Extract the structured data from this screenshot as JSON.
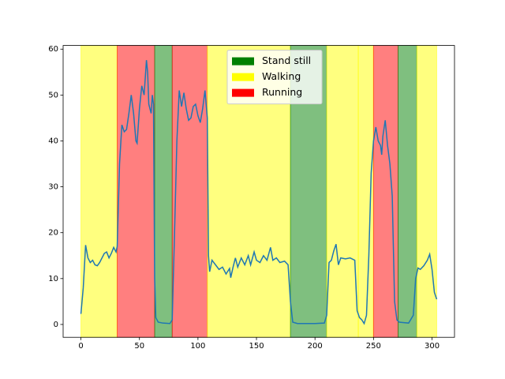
{
  "chart_data": {
    "type": "line",
    "x": [
      0,
      2,
      4,
      6,
      8,
      10,
      12,
      14,
      16,
      18,
      20,
      22,
      24,
      26,
      28,
      30,
      31,
      33,
      35,
      37,
      39,
      41,
      43,
      45,
      47,
      48,
      50,
      52,
      54,
      56,
      57,
      58,
      60,
      61,
      62,
      63,
      64,
      66,
      70,
      76,
      78,
      80,
      82,
      84,
      86,
      88,
      90,
      92,
      94,
      96,
      98,
      100,
      102,
      104,
      106,
      108,
      109,
      110,
      112,
      115,
      118,
      121,
      124,
      127,
      128,
      130,
      132,
      134,
      137,
      140,
      143,
      145,
      148,
      150,
      153,
      156,
      159,
      162,
      164,
      167,
      170,
      174,
      177,
      179,
      181,
      185,
      200,
      208,
      210,
      212,
      214,
      216,
      218,
      220,
      222,
      226,
      230,
      234,
      236,
      238,
      240,
      242,
      244,
      246,
      248,
      250,
      252,
      254,
      256,
      257,
      258,
      260,
      262,
      264,
      266,
      268,
      270,
      272,
      280,
      284,
      286,
      288,
      290,
      293,
      296,
      298,
      300,
      302,
      304
    ],
    "series": [
      {
        "color": "#1f77b4",
        "values": [
          2.3,
          8,
          17.3,
          14.5,
          13.5,
          14,
          13,
          12.8,
          13.5,
          14.5,
          15.5,
          15.8,
          14.5,
          15.5,
          16.8,
          15.8,
          17,
          35,
          43.5,
          42,
          42.5,
          46,
          50,
          46,
          40,
          39.5,
          47,
          52,
          50,
          57.6,
          55,
          48,
          46,
          50,
          48,
          10,
          1.5,
          0.5,
          0.3,
          0.2,
          1,
          20,
          40,
          51,
          47.5,
          50.5,
          47,
          44.5,
          45,
          47.5,
          48,
          45.5,
          44,
          47,
          51,
          45,
          15,
          11.5,
          14,
          13,
          12,
          12.5,
          11,
          12.2,
          10.2,
          12.5,
          14.5,
          12.5,
          14.5,
          13,
          15,
          13,
          15.8,
          14,
          13.5,
          15,
          14,
          16.8,
          14,
          14.5,
          13.5,
          13.8,
          13,
          5,
          0.5,
          0.2,
          0.2,
          0.3,
          2,
          13.5,
          14,
          16,
          17.5,
          13,
          14.5,
          14.3,
          14.5,
          14,
          3,
          1.5,
          1,
          0.2,
          2,
          15,
          33,
          40,
          43,
          40,
          39,
          37,
          41,
          44.5,
          39,
          35,
          28,
          5,
          1,
          0.5,
          0.3,
          2,
          10,
          12.3,
          12,
          12.8,
          14,
          15.3,
          12,
          7,
          5.5
        ]
      }
    ],
    "states": [
      {
        "name": "Stand still",
        "color": "#008000"
      },
      {
        "name": "Walking",
        "color": "#ffff00"
      },
      {
        "name": "Running",
        "color": "#ff0000"
      }
    ],
    "spans": [
      {
        "start": 0,
        "end": 31,
        "state": 1
      },
      {
        "start": 31,
        "end": 63,
        "state": 2
      },
      {
        "start": 63,
        "end": 78,
        "state": 0
      },
      {
        "start": 78,
        "end": 108,
        "state": 2
      },
      {
        "start": 108,
        "end": 179,
        "state": 1
      },
      {
        "start": 179,
        "end": 210,
        "state": 0
      },
      {
        "start": 210,
        "end": 237,
        "state": 1
      },
      {
        "start": 237,
        "end": 250,
        "state": 1
      },
      {
        "start": 250,
        "end": 271,
        "state": 2
      },
      {
        "start": 271,
        "end": 287,
        "state": 0
      },
      {
        "start": 287,
        "end": 304,
        "state": 1
      }
    ],
    "xlim": [
      -15.2,
      319.2
    ],
    "ylim": [
      -2.8,
      60.8
    ],
    "xticks": [
      0,
      50,
      100,
      150,
      200,
      250,
      300
    ],
    "yticks": [
      0,
      10,
      20,
      30,
      40,
      50,
      60
    ],
    "legend": "upper center"
  }
}
